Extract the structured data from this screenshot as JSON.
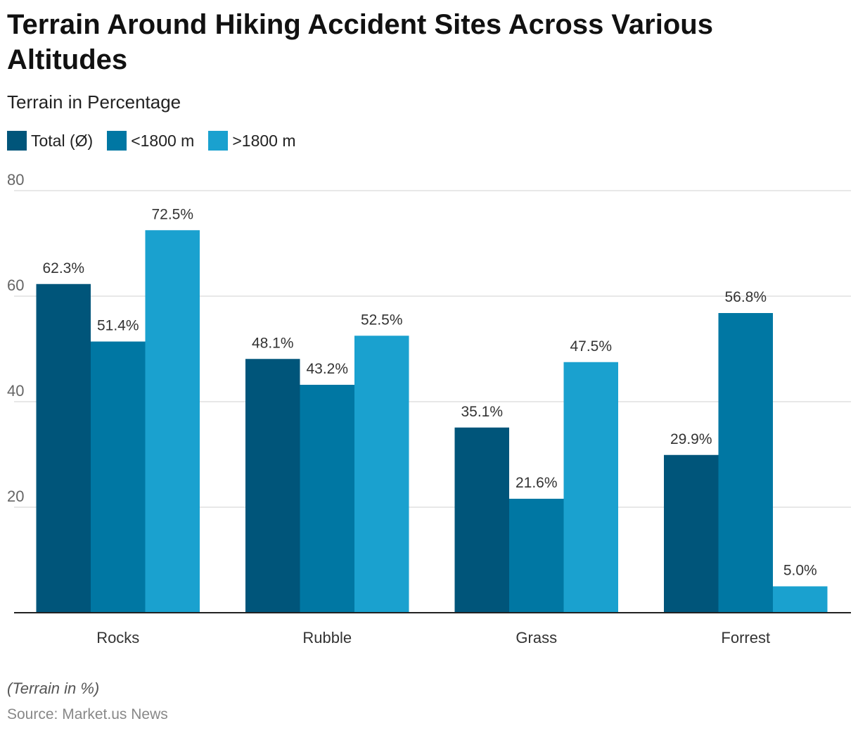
{
  "chart_data": {
    "type": "bar",
    "title": "Terrain Around Hiking Accident Sites Across Various Altitudes",
    "subtitle": "Terrain in Percentage",
    "xlabel": "",
    "ylabel": "",
    "categories": [
      "Rocks",
      "Rubble",
      "Grass",
      "Forrest"
    ],
    "series": [
      {
        "name": "Total (Ø)",
        "color": "#00557a",
        "values": [
          62.3,
          48.1,
          35.1,
          29.9
        ],
        "labels": [
          "62.3%",
          "48.1%",
          "35.1%",
          "29.9%"
        ]
      },
      {
        "name": "<1800 m",
        "color": "#0077a3",
        "values": [
          51.4,
          43.2,
          21.6,
          56.8
        ],
        "labels": [
          "51.4%",
          "43.2%",
          "21.6%",
          "56.8%"
        ]
      },
      {
        "name": ">1800 m",
        "color": "#1aa1cf",
        "values": [
          72.5,
          52.5,
          47.5,
          5.0
        ],
        "labels": [
          "72.5%",
          "52.5%",
          "47.5%",
          "5.0%"
        ]
      }
    ],
    "ylim": [
      0,
      80
    ],
    "yticks": [
      20,
      40,
      60,
      80
    ],
    "ytick_labels": [
      "20",
      "40",
      "60",
      "80"
    ],
    "grid": true,
    "legend_position": "top-left",
    "note": "(Terrain in %)",
    "source": "Source: Market.us News"
  }
}
